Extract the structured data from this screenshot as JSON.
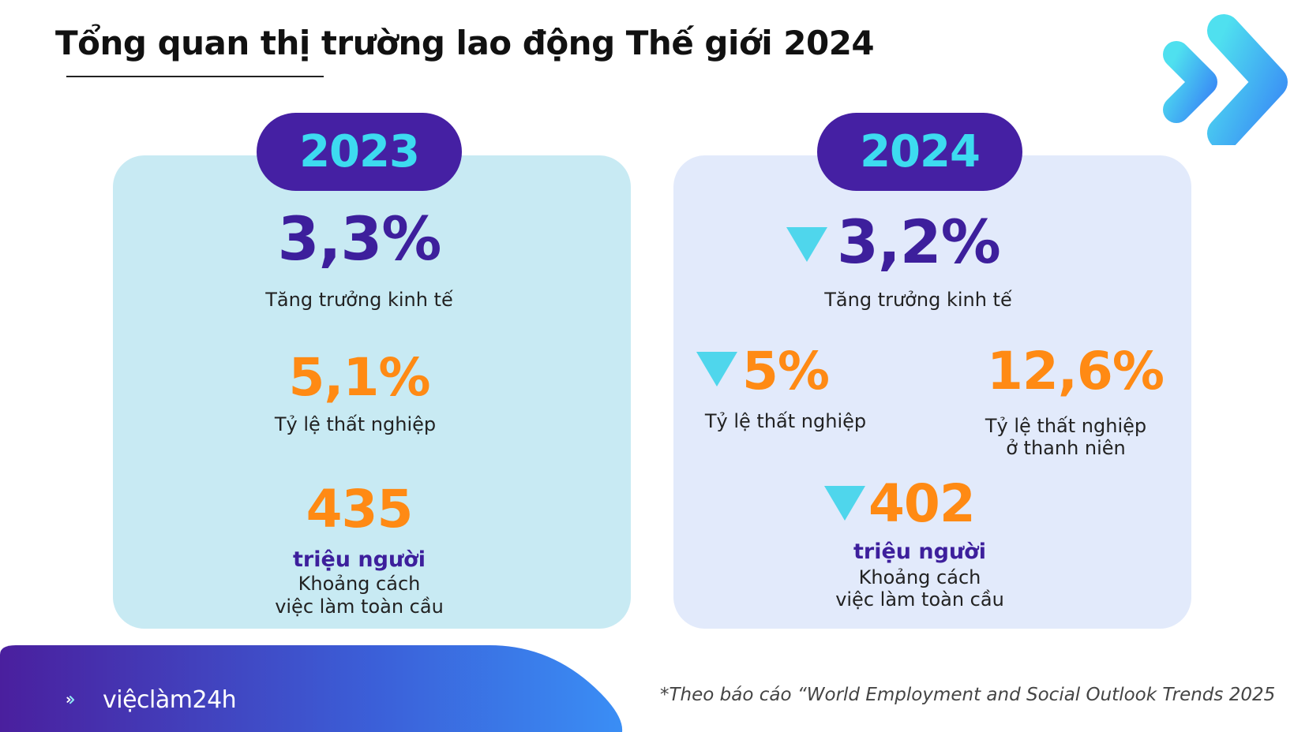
{
  "title": "Tổng quan thị trường lao động Thế giới 2024",
  "colors": {
    "purple": "#3d1f9c",
    "pill_bg": "#4520a3",
    "pill_text": "#3ddbf0",
    "orange": "#ff8a14",
    "cyan_triangle": "#4fd6ec",
    "panel_2023": "#c8eaf3",
    "panel_2024": "#e2eafb"
  },
  "panel_2023": {
    "year": "2023",
    "growth_value": "3,3%",
    "growth_label": "Tăng trưởng kinh tế",
    "unemployment_value": "5,1%",
    "unemployment_label": "Tỷ lệ thất nghiệp",
    "jobs_gap_value": "435",
    "jobs_gap_unit": "triệu người",
    "jobs_gap_label_line1": "Khoảng cách",
    "jobs_gap_label_line2": "việc làm toàn cầu"
  },
  "panel_2024": {
    "year": "2024",
    "growth_value": "3,2%",
    "growth_label": "Tăng trưởng kinh tế",
    "unemployment_value": "5%",
    "unemployment_label": "Tỷ lệ thất nghiệp",
    "youth_unemployment_value": "12,6%",
    "youth_unemployment_label_line1": "Tỷ lệ thất nghiệp",
    "youth_unemployment_label_line2": "ở thanh niên",
    "jobs_gap_value": "402",
    "jobs_gap_unit": "triệu người",
    "jobs_gap_label_line1": "Khoảng cách",
    "jobs_gap_label_line2": "việc làm toàn cầu"
  },
  "footer": {
    "brand": "việclàm24h",
    "source_note": "*Theo báo cáo “World Employment and Social Outlook Trends 2025"
  },
  "icons": {
    "decrease": "down-triangle-icon",
    "brand_arrows": "double-chevron-icon"
  }
}
